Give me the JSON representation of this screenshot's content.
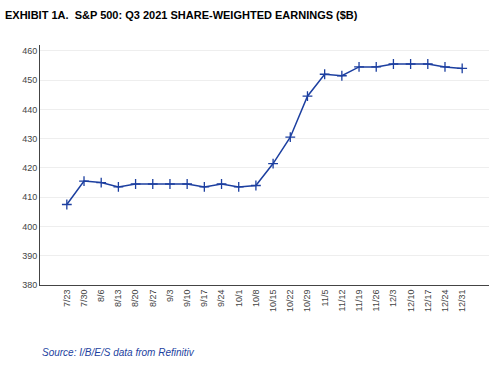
{
  "chart_data": {
    "type": "line",
    "title": "EXHIBIT 1A.  S&P 500: Q3 2021 SHARE-WEIGHTED EARNINGS ($B)",
    "annotations": [
      "Source: I/B/E/S data from Refinitiv"
    ],
    "categories": [
      "7/23",
      "7/30",
      "8/6",
      "8/13",
      "8/20",
      "8/27",
      "9/3",
      "9/10",
      "9/17",
      "9/24",
      "10/1",
      "10/8",
      "10/15",
      "10/22",
      "10/29",
      "11/5",
      "11/12",
      "11/19",
      "11/26",
      "12/3",
      "12/10",
      "12/17",
      "12/24",
      "12/31"
    ],
    "values": [
      407.5,
      415.5,
      415.0,
      413.5,
      414.5,
      414.5,
      414.5,
      414.5,
      413.5,
      414.5,
      413.5,
      414.0,
      421.5,
      430.5,
      444.5,
      452.0,
      451.5,
      454.5,
      454.5,
      455.5,
      455.5,
      455.5,
      454.5,
      454.0
    ],
    "color": "#1c3fa0",
    "marker": "+",
    "ylim": [
      380,
      462
    ],
    "yticks": [
      380,
      390,
      400,
      410,
      420,
      430,
      440,
      450,
      460
    ],
    "grid": true
  }
}
